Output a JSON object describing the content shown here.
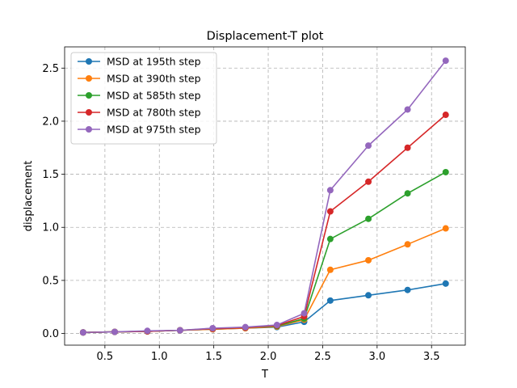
{
  "chart_data": {
    "type": "line",
    "title": "Displacement-T plot",
    "xlabel": "T",
    "ylabel": "displacement",
    "xlim": [
      0.13,
      3.81
    ],
    "ylim": [
      -0.11,
      2.7
    ],
    "xticks": [
      0.5,
      1.0,
      1.5,
      2.0,
      2.5,
      3.0,
      3.5
    ],
    "xtick_labels": [
      "0.5",
      "1.0",
      "1.5",
      "2.0",
      "2.5",
      "3.0",
      "3.5"
    ],
    "yticks": [
      0.0,
      0.5,
      1.0,
      1.5,
      2.0,
      2.5
    ],
    "ytick_labels": [
      "0.0",
      "0.5",
      "1.0",
      "1.5",
      "2.0",
      "2.5"
    ],
    "grid": true,
    "legend_position": "upper-left",
    "x": [
      0.3,
      0.59,
      0.89,
      1.19,
      1.49,
      1.79,
      2.08,
      2.33,
      2.57,
      2.92,
      3.28,
      3.63
    ],
    "series": [
      {
        "name": "MSD at 195th step",
        "color": "#1f77b4",
        "values": [
          0.01,
          0.015,
          0.02,
          0.03,
          0.04,
          0.05,
          0.06,
          0.11,
          0.31,
          0.36,
          0.41,
          0.47
        ]
      },
      {
        "name": "MSD at 390th step",
        "color": "#ff7f0e",
        "values": [
          0.01,
          0.015,
          0.02,
          0.03,
          0.04,
          0.05,
          0.065,
          0.13,
          0.6,
          0.69,
          0.84,
          0.99
        ]
      },
      {
        "name": "MSD at 585th step",
        "color": "#2ca02c",
        "values": [
          0.01,
          0.015,
          0.02,
          0.03,
          0.045,
          0.055,
          0.07,
          0.14,
          0.89,
          1.08,
          1.32,
          1.52
        ]
      },
      {
        "name": "MSD at 780th step",
        "color": "#d62728",
        "values": [
          0.01,
          0.015,
          0.02,
          0.03,
          0.045,
          0.055,
          0.075,
          0.16,
          1.15,
          1.43,
          1.75,
          2.06
        ]
      },
      {
        "name": "MSD at 975th step",
        "color": "#9467bd",
        "values": [
          0.01,
          0.015,
          0.025,
          0.03,
          0.05,
          0.06,
          0.08,
          0.19,
          1.35,
          1.77,
          2.11,
          2.57
        ]
      }
    ]
  }
}
